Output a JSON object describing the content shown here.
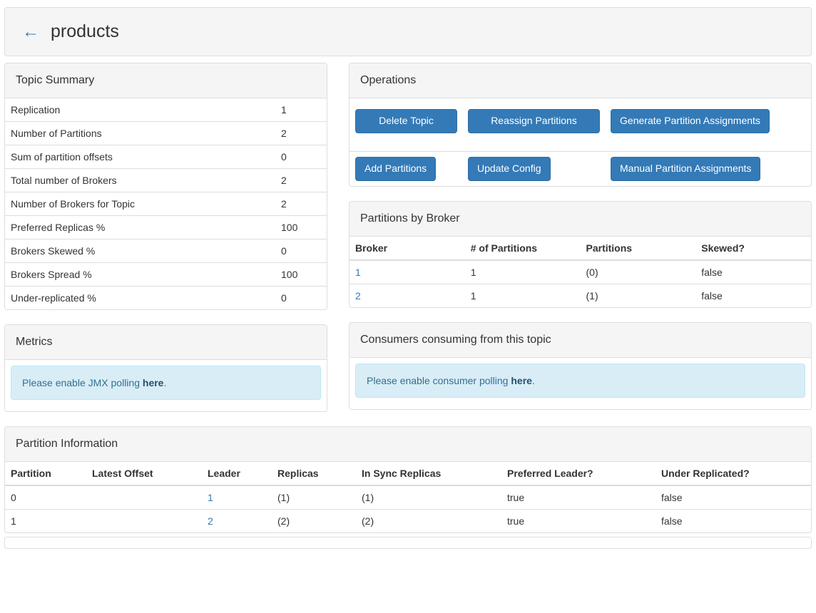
{
  "colors": {
    "accent": "#337ab7",
    "button_border": "#2e6da4",
    "panel_heading_bg": "#f5f5f5",
    "panel_border": "#dddddd",
    "alert_bg": "#d9edf7",
    "alert_border": "#bce8f1",
    "alert_text": "#31708f"
  },
  "header": {
    "back_glyph": "←",
    "title": "products"
  },
  "topic_summary": {
    "title": "Topic Summary",
    "rows": [
      {
        "label": "Replication",
        "value": "1"
      },
      {
        "label": "Number of Partitions",
        "value": "2"
      },
      {
        "label": "Sum of partition offsets",
        "value": "0"
      },
      {
        "label": "Total number of Brokers",
        "value": "2"
      },
      {
        "label": "Number of Brokers for Topic",
        "value": "2"
      },
      {
        "label": "Preferred Replicas %",
        "value": "100"
      },
      {
        "label": "Brokers Skewed %",
        "value": "0"
      },
      {
        "label": "Brokers Spread %",
        "value": "100"
      },
      {
        "label": "Under-replicated %",
        "value": "0"
      }
    ]
  },
  "metrics": {
    "title": "Metrics",
    "alert_text": "Please enable JMX polling ",
    "alert_link": "here",
    "alert_suffix": "."
  },
  "operations": {
    "title": "Operations",
    "buttons_row1": [
      "Delete Topic",
      "Reassign Partitions",
      "Generate Partition Assignments"
    ],
    "buttons_row2": [
      "Add Partitions",
      "Update Config",
      "Manual Partition Assignments"
    ]
  },
  "partitions_by_broker": {
    "title": "Partitions by Broker",
    "columns": [
      "Broker",
      "# of Partitions",
      "Partitions",
      "Skewed?"
    ],
    "rows": [
      {
        "broker": "1",
        "num_partitions": "1",
        "partitions": "(0)",
        "skewed": "false"
      },
      {
        "broker": "2",
        "num_partitions": "1",
        "partitions": "(1)",
        "skewed": "false"
      }
    ]
  },
  "consumers": {
    "title": "Consumers consuming from this topic",
    "alert_text": "Please enable consumer polling ",
    "alert_link": "here",
    "alert_suffix": "."
  },
  "partition_information": {
    "title": "Partition Information",
    "columns": [
      "Partition",
      "Latest Offset",
      "Leader",
      "Replicas",
      "In Sync Replicas",
      "Preferred Leader?",
      "Under Replicated?"
    ],
    "rows": [
      {
        "partition": "0",
        "latest_offset": "",
        "leader": "1",
        "replicas": "(1)",
        "in_sync_replicas": "(1)",
        "preferred_leader": "true",
        "under_replicated": "false"
      },
      {
        "partition": "1",
        "latest_offset": "",
        "leader": "2",
        "replicas": "(2)",
        "in_sync_replicas": "(2)",
        "preferred_leader": "true",
        "under_replicated": "false"
      }
    ]
  }
}
